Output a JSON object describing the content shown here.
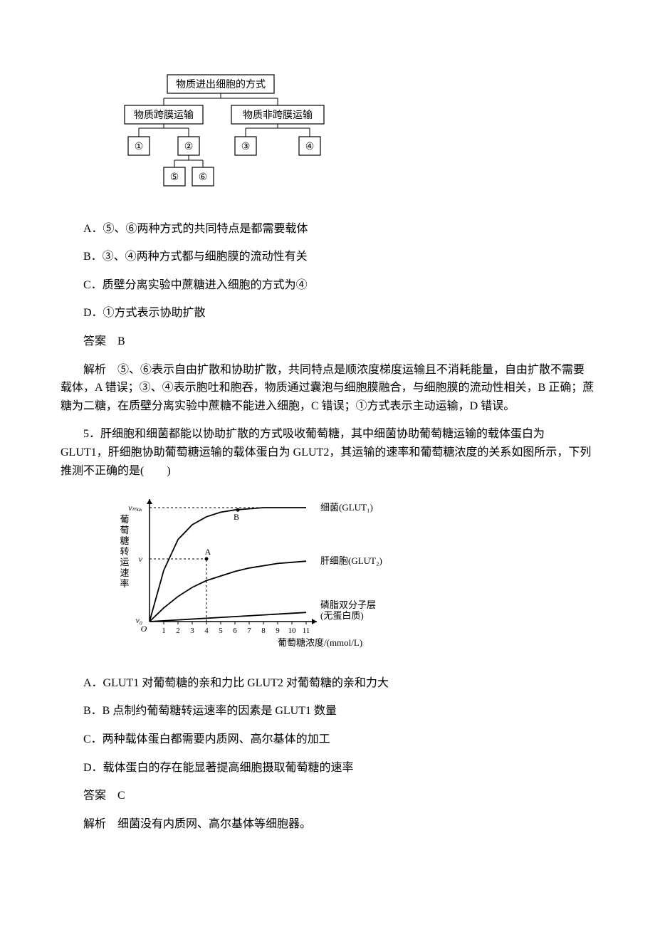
{
  "diagram1": {
    "root": "物质进出细胞的方式",
    "level2_left": "物质跨膜运输",
    "level2_right": "物质非跨膜运输",
    "leaf1": "①",
    "leaf2": "②",
    "leaf3": "③",
    "leaf4": "④",
    "leaf5": "⑤",
    "leaf6": "⑥",
    "node_border": "#000000",
    "line_color": "#000000",
    "fontsize": 14
  },
  "options1": {
    "A": "A．⑤、⑥两种方式的共同特点是都需要载体",
    "B": "B．③、④两种方式都与细胞膜的流动性有关",
    "C": "C．质壁分离实验中蔗糖进入细胞的方式为④",
    "D": "D．①方式表示协助扩散"
  },
  "answer1": "答案　B",
  "explanation1": "解析　⑤、⑥表示自由扩散和协助扩散，共同特点是顺浓度梯度运输且不消耗能量，自由扩散不需要载体，A 错误；③、④表示胞吐和胞吞，物质通过囊泡与细胞膜融合，与细胞膜的流动性相关，B 正确；蔗糖为二糖，在质壁分离实验中蔗糖不能进入细胞，C 错误；①方式表示主动运输，D 错误。",
  "question5": "5．肝细胞和细菌都能以协助扩散的方式吸收葡萄糖，其中细菌协助葡萄糖运输的载体蛋白为 GLUT1，肝细胞协助葡萄糖运输的载体蛋白为 GLUT2，其运输的速率和葡萄糖浓度的关系如图所示，下列推测不正确的是(　　)",
  "chart": {
    "type": "line",
    "xlabel": "葡萄糖浓度/(mmol/L)",
    "ylabel": "葡萄糖转运速率",
    "y_top": "vₘₐₓ",
    "y_mid": "v",
    "y_bottom": "v₀",
    "x_ticks": [
      1,
      2,
      3,
      4,
      5,
      6,
      7,
      8,
      9,
      10,
      11
    ],
    "xlim": [
      0,
      11
    ],
    "series": [
      {
        "name": "细菌(GLUT₁)",
        "label": "细菌(GLUT₁)",
        "color": "#000000",
        "points": [
          [
            0,
            0
          ],
          [
            1,
            0.45
          ],
          [
            2,
            0.72
          ],
          [
            3,
            0.85
          ],
          [
            4,
            0.92
          ],
          [
            5,
            0.96
          ],
          [
            6,
            0.98
          ],
          [
            7,
            0.99
          ],
          [
            8,
            1.0
          ],
          [
            9,
            1.0
          ],
          [
            10,
            1.0
          ],
          [
            11,
            1.0
          ]
        ],
        "marker_B": {
          "x": 6.2,
          "y": 0.98,
          "label": "B"
        }
      },
      {
        "name": "肝细胞(GLUT₂)",
        "label": "肝细胞(GLUT₂)",
        "color": "#000000",
        "points": [
          [
            0,
            0
          ],
          [
            1,
            0.12
          ],
          [
            2,
            0.22
          ],
          [
            3,
            0.3
          ],
          [
            4,
            0.36
          ],
          [
            5,
            0.4
          ],
          [
            6,
            0.44
          ],
          [
            7,
            0.47
          ],
          [
            8,
            0.49
          ],
          [
            9,
            0.51
          ],
          [
            10,
            0.52
          ],
          [
            11,
            0.53
          ]
        ],
        "marker_A": {
          "x": 4,
          "y": 0.55,
          "label": "A"
        }
      },
      {
        "name": "磷脂双分子层",
        "label_line1": "磷脂双分子层",
        "label_line2": "(无蛋白质)",
        "color": "#000000",
        "points": [
          [
            0,
            0
          ],
          [
            11,
            0.08
          ]
        ]
      }
    ],
    "dashed_lines": [
      {
        "from": [
          0,
          1.0
        ],
        "to": [
          8,
          1.0
        ]
      },
      {
        "from": [
          4,
          0
        ],
        "to": [
          4,
          0.55
        ]
      },
      {
        "from": [
          0,
          0.55
        ],
        "to": [
          4,
          0.55
        ]
      }
    ],
    "axis_color": "#000000",
    "grid_color": "#e0e0e0",
    "background_color": "#ffffff",
    "fontsize": 12,
    "label_fontsize": 13
  },
  "options2": {
    "A": "A．GLUT1 对葡萄糖的亲和力比 GLUT2 对葡萄糖的亲和力大",
    "B": "B．B 点制约葡萄糖转运速率的因素是 GLUT1 数量",
    "C": "C．两种载体蛋白都需要内质网、高尔基体的加工",
    "D": "D．载体蛋白的存在能显著提高细胞摄取葡萄糖的速率"
  },
  "answer2": "答案　C",
  "explanation2": "解析　细菌没有内质网、高尔基体等细胞器。"
}
